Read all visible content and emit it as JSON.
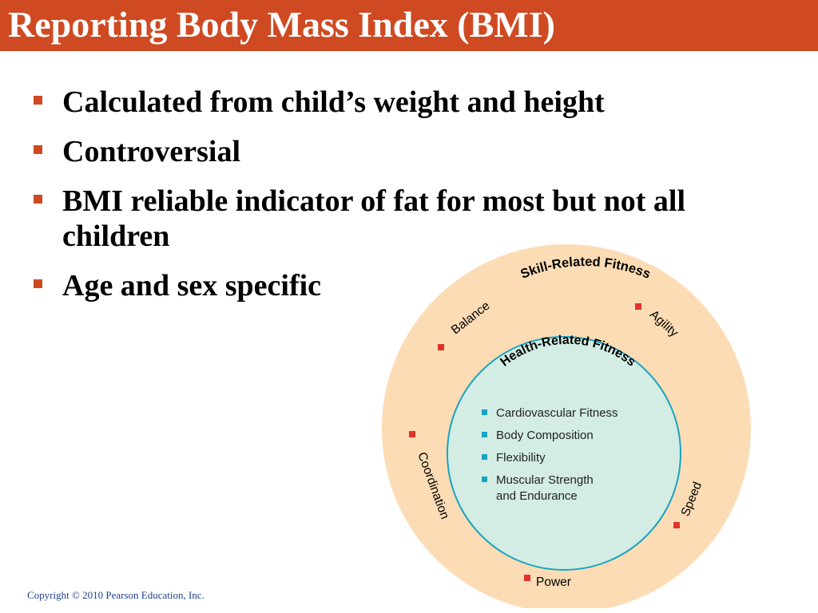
{
  "slide": {
    "title": "Reporting Body Mass Index (BMI)",
    "bullets": [
      {
        "text": "Calculated from child’s weight and height"
      },
      {
        "text": "Controversial"
      },
      {
        "text": "BMI reliable indicator of fat for most but not all children"
      },
      {
        "text": "Age and sex specific"
      }
    ],
    "footer": "Copyright © 2010 Pearson Education, Inc."
  },
  "diagram": {
    "outer_title": "Skill-Related Fitness",
    "inner_title": "Health-Related Fitness",
    "skills": [
      "Balance",
      "Agility",
      "Coordination",
      "Speed",
      "Power"
    ],
    "health_items": [
      "Cardiovascular Fitness",
      "Body Composition",
      "Flexibility",
      "Muscular Strength",
      "and Endurance"
    ]
  },
  "colors": {
    "accent": "#cf4a22",
    "outer_circle": "#fcdcb4",
    "inner_circle": "#d3ede4",
    "inner_border": "#1aa3c2",
    "text": "#000000",
    "footer": "#1f3f8f"
  }
}
